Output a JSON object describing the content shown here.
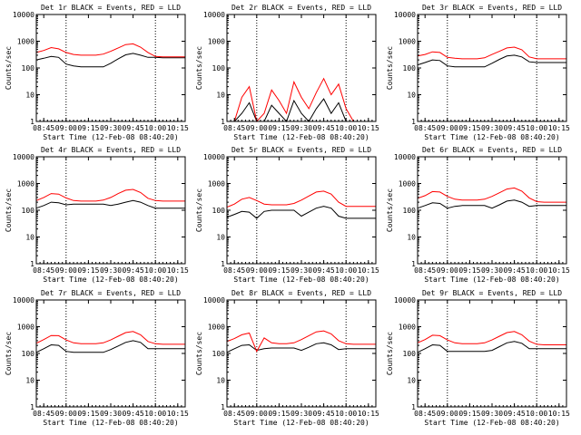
{
  "figure": {
    "xlabel": "Start Time (12-Feb-08 08:40:20)",
    "ylabel": "Counts/sec",
    "ylim": [
      1,
      10000
    ],
    "yscale": "log",
    "x_range_minutes": [
      0,
      100
    ],
    "x_tick_labels": [
      "08:45",
      "09:00",
      "09:15",
      "09:30",
      "09:45",
      "10:00",
      "10:15"
    ],
    "x_tick_minutes": [
      5,
      20,
      35,
      50,
      65,
      80,
      95
    ],
    "y_tick_labels": [
      "1",
      "10",
      "100",
      "1000",
      "10000"
    ],
    "y_tick_values": [
      1,
      10,
      100,
      1000,
      10000
    ],
    "dotted_vline_minutes": [
      20,
      80
    ],
    "colors": {
      "events": "#000000",
      "lld": "#ff0000",
      "axes": "#000000"
    }
  },
  "chart_data": [
    {
      "type": "line",
      "title": "Det 1r BLACK = Events, RED = LLD",
      "x": [
        0,
        5,
        10,
        15,
        20,
        25,
        30,
        35,
        40,
        45,
        50,
        55,
        60,
        65,
        70,
        75,
        80,
        85,
        90,
        95,
        100
      ],
      "series": [
        {
          "name": "Events",
          "color": "#000000",
          "values": [
            200,
            230,
            270,
            250,
            140,
            120,
            110,
            110,
            110,
            110,
            150,
            220,
            310,
            350,
            300,
            250,
            250,
            240,
            240,
            240,
            240
          ]
        },
        {
          "name": "LLD",
          "color": "#ff0000",
          "values": [
            380,
            450,
            580,
            520,
            380,
            320,
            300,
            300,
            300,
            330,
            420,
            560,
            750,
            800,
            600,
            380,
            270,
            260,
            260,
            260,
            260
          ]
        }
      ]
    },
    {
      "type": "line",
      "title": "Det 2r BLACK = Events, RED = LLD",
      "x": [
        0,
        5,
        10,
        15,
        20,
        25,
        30,
        35,
        40,
        45,
        50,
        55,
        60,
        65,
        70,
        75,
        80,
        85,
        90,
        95,
        100
      ],
      "series": [
        {
          "name": "Events",
          "color": "#000000",
          "values": [
            1,
            1,
            2,
            5,
            1,
            1,
            4,
            2,
            1,
            6,
            2,
            1,
            3,
            7,
            2,
            5,
            1,
            1,
            1,
            1,
            1
          ]
        },
        {
          "name": "LLD",
          "color": "#ff0000",
          "values": [
            1,
            1,
            8,
            20,
            1,
            2,
            15,
            6,
            2,
            30,
            8,
            3,
            12,
            40,
            10,
            25,
            3,
            1,
            1,
            1,
            1
          ]
        }
      ]
    },
    {
      "type": "line",
      "title": "Det 3r BLACK = Events, RED = LLD",
      "x": [
        0,
        5,
        10,
        15,
        20,
        25,
        30,
        35,
        40,
        45,
        50,
        55,
        60,
        65,
        70,
        75,
        80,
        85,
        90,
        95,
        100
      ],
      "series": [
        {
          "name": "Events",
          "color": "#000000",
          "values": [
            130,
            160,
            200,
            190,
            120,
            110,
            110,
            110,
            110,
            110,
            150,
            210,
            280,
            300,
            260,
            170,
            160,
            160,
            160,
            160,
            160
          ]
        },
        {
          "name": "LLD",
          "color": "#ff0000",
          "values": [
            280,
            320,
            400,
            380,
            250,
            230,
            220,
            220,
            220,
            240,
            320,
            420,
            560,
            600,
            480,
            260,
            220,
            220,
            220,
            220,
            220
          ]
        }
      ]
    },
    {
      "type": "line",
      "title": "Det 4r BLACK = Events, RED = LLD",
      "x": [
        0,
        5,
        10,
        15,
        20,
        25,
        30,
        35,
        40,
        45,
        50,
        55,
        60,
        65,
        70,
        75,
        80,
        85,
        90,
        95,
        100
      ],
      "series": [
        {
          "name": "Events",
          "color": "#000000",
          "values": [
            120,
            150,
            200,
            190,
            160,
            170,
            170,
            170,
            170,
            170,
            150,
            170,
            200,
            230,
            200,
            150,
            120,
            120,
            120,
            120,
            120
          ]
        },
        {
          "name": "LLD",
          "color": "#ff0000",
          "values": [
            230,
            300,
            420,
            400,
            290,
            230,
            220,
            220,
            220,
            240,
            300,
            420,
            560,
            600,
            460,
            280,
            230,
            220,
            220,
            220,
            220
          ]
        }
      ]
    },
    {
      "type": "line",
      "title": "Det 5r BLACK = Events, RED = LLD",
      "x": [
        0,
        5,
        10,
        15,
        20,
        25,
        30,
        35,
        40,
        45,
        50,
        55,
        60,
        65,
        70,
        75,
        80,
        85,
        90,
        95,
        100
      ],
      "series": [
        {
          "name": "Events",
          "color": "#000000",
          "values": [
            55,
            70,
            90,
            85,
            50,
            90,
            100,
            100,
            100,
            100,
            60,
            85,
            120,
            140,
            120,
            60,
            50,
            50,
            50,
            50,
            50
          ]
        },
        {
          "name": "LLD",
          "color": "#ff0000",
          "values": [
            130,
            170,
            260,
            300,
            230,
            170,
            160,
            160,
            160,
            180,
            240,
            340,
            480,
            520,
            400,
            200,
            140,
            140,
            140,
            140,
            140
          ]
        }
      ]
    },
    {
      "type": "line",
      "title": "Det 6r BLACK = Events, RED = LLD",
      "x": [
        0,
        5,
        10,
        15,
        20,
        25,
        30,
        35,
        40,
        45,
        50,
        55,
        60,
        65,
        70,
        75,
        80,
        85,
        90,
        95,
        100
      ],
      "series": [
        {
          "name": "Events",
          "color": "#000000",
          "values": [
            120,
            150,
            190,
            180,
            120,
            140,
            150,
            150,
            150,
            150,
            120,
            160,
            220,
            240,
            200,
            140,
            150,
            150,
            150,
            150,
            150
          ]
        },
        {
          "name": "LLD",
          "color": "#ff0000",
          "values": [
            280,
            350,
            500,
            480,
            330,
            260,
            240,
            240,
            240,
            260,
            330,
            450,
            620,
            680,
            520,
            290,
            210,
            200,
            200,
            200,
            200
          ]
        }
      ]
    },
    {
      "type": "line",
      "title": "Det 7r BLACK = Events, RED = LLD",
      "x": [
        0,
        5,
        10,
        15,
        20,
        25,
        30,
        35,
        40,
        45,
        50,
        55,
        60,
        65,
        70,
        75,
        80,
        85,
        90,
        95,
        100
      ],
      "series": [
        {
          "name": "Events",
          "color": "#000000",
          "values": [
            110,
            150,
            210,
            200,
            120,
            110,
            110,
            110,
            110,
            110,
            140,
            190,
            260,
            300,
            260,
            150,
            150,
            150,
            150,
            150,
            150
          ]
        },
        {
          "name": "LLD",
          "color": "#ff0000",
          "values": [
            240,
            330,
            470,
            460,
            320,
            250,
            230,
            230,
            230,
            250,
            320,
            440,
            600,
            660,
            500,
            280,
            230,
            220,
            220,
            220,
            220
          ]
        }
      ]
    },
    {
      "type": "line",
      "title": "Det 8r BLACK = Events, RED = LLD",
      "x": [
        0,
        5,
        10,
        15,
        20,
        25,
        30,
        35,
        40,
        45,
        50,
        55,
        60,
        65,
        70,
        75,
        80,
        85,
        90,
        95,
        100
      ],
      "series": [
        {
          "name": "Events",
          "color": "#000000",
          "values": [
            110,
            150,
            200,
            210,
            130,
            150,
            160,
            160,
            160,
            160,
            130,
            170,
            230,
            250,
            210,
            140,
            150,
            150,
            150,
            150,
            150
          ]
        },
        {
          "name": "LLD",
          "color": "#ff0000",
          "values": [
            280,
            360,
            500,
            580,
            120,
            380,
            250,
            230,
            230,
            250,
            330,
            460,
            640,
            700,
            540,
            300,
            230,
            220,
            220,
            220,
            220
          ]
        }
      ]
    },
    {
      "type": "line",
      "title": "Det 9r BLACK = Events, RED = LLD",
      "x": [
        0,
        5,
        10,
        15,
        20,
        25,
        30,
        35,
        40,
        45,
        50,
        55,
        60,
        65,
        70,
        75,
        80,
        85,
        90,
        95,
        100
      ],
      "series": [
        {
          "name": "Events",
          "color": "#000000",
          "values": [
            110,
            150,
            210,
            200,
            120,
            120,
            120,
            120,
            120,
            120,
            130,
            180,
            250,
            280,
            240,
            150,
            150,
            150,
            150,
            150,
            150
          ]
        },
        {
          "name": "LLD",
          "color": "#ff0000",
          "values": [
            250,
            330,
            480,
            460,
            320,
            250,
            230,
            230,
            230,
            250,
            320,
            440,
            600,
            660,
            500,
            290,
            220,
            210,
            210,
            210,
            210
          ]
        }
      ]
    }
  ]
}
